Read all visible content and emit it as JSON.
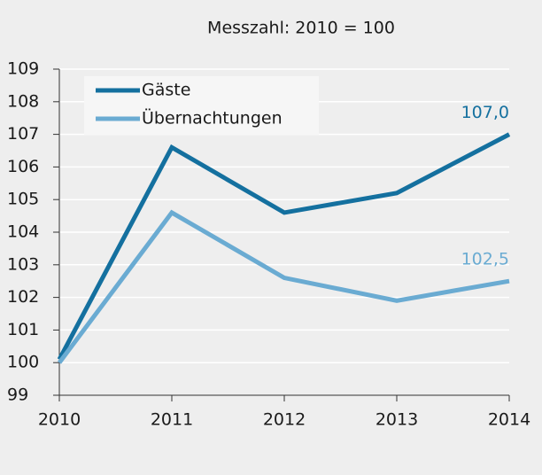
{
  "chart_data": {
    "type": "line",
    "title": "Messzahl: 2010 = 100",
    "categories": [
      "2010",
      "2011",
      "2012",
      "2013",
      "2014"
    ],
    "series": [
      {
        "name": "Gäste",
        "color": "#14709f",
        "values": [
          100.1,
          106.6,
          104.6,
          105.2,
          107.0
        ],
        "value_labels": [
          null,
          null,
          null,
          null,
          "107,0"
        ]
      },
      {
        "name": "Übernachtungen",
        "color": "#6aabd2",
        "values": [
          100.0,
          104.6,
          102.6,
          101.9,
          102.5
        ],
        "value_labels": [
          null,
          null,
          null,
          null,
          "102,5"
        ]
      }
    ],
    "ylim": [
      99,
      109
    ],
    "yticks": [
      99,
      100,
      101,
      102,
      103,
      104,
      105,
      106,
      107,
      108,
      109
    ],
    "grid": true,
    "legend": "top-left"
  }
}
